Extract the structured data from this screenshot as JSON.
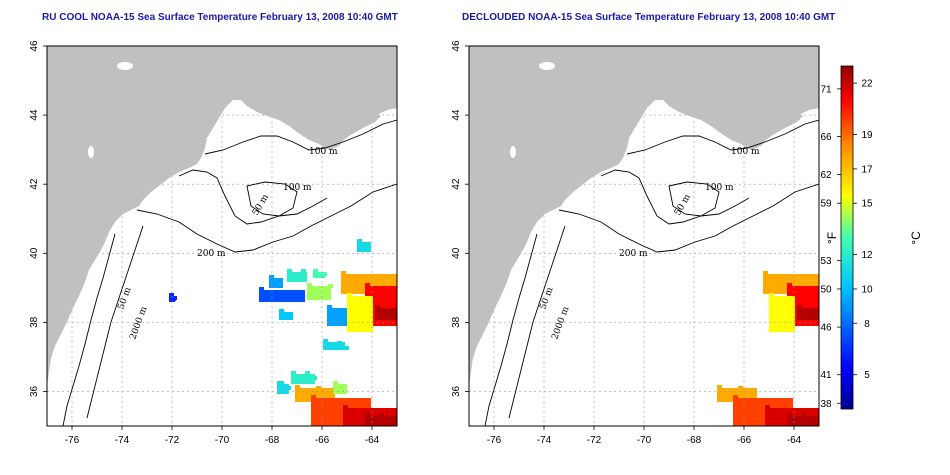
{
  "panels": [
    {
      "title": "RU COOL NOAA-15 Sea Surface Temperature February 13, 2008 10:40 GMT",
      "mode": "full"
    },
    {
      "title": "DECLOUDED NOAA-15 Sea Surface Temperature February 13, 2008 10:40 GMT",
      "mode": "declouded"
    }
  ],
  "map": {
    "lon_ticks": [
      "-76",
      "-74",
      "-72",
      "-70",
      "-68",
      "-66",
      "-64"
    ],
    "lat_ticks": [
      "46",
      "44",
      "42",
      "40",
      "38",
      "36"
    ],
    "lon_range": [
      -77,
      -63
    ],
    "lat_range": [
      35,
      46
    ]
  },
  "isobaths": [
    "100 m",
    "100 m",
    "50 m",
    "200 m",
    "50 m",
    "2000 m"
  ],
  "colorbar": {
    "f_label": "°F",
    "c_label": "°C",
    "f_ticks": [
      "71",
      "66",
      "62",
      "59",
      "53",
      "50",
      "46",
      "41",
      "38"
    ],
    "c_ticks": [
      "22",
      "19",
      "17",
      "15",
      "12",
      "10",
      "8",
      "5"
    ],
    "range_c": [
      3,
      23
    ]
  },
  "colors": {
    "land": "#c0c0c0",
    "contour": "#000000",
    "grid": "#9a9a9a",
    "title": "#1a1aa8"
  }
}
